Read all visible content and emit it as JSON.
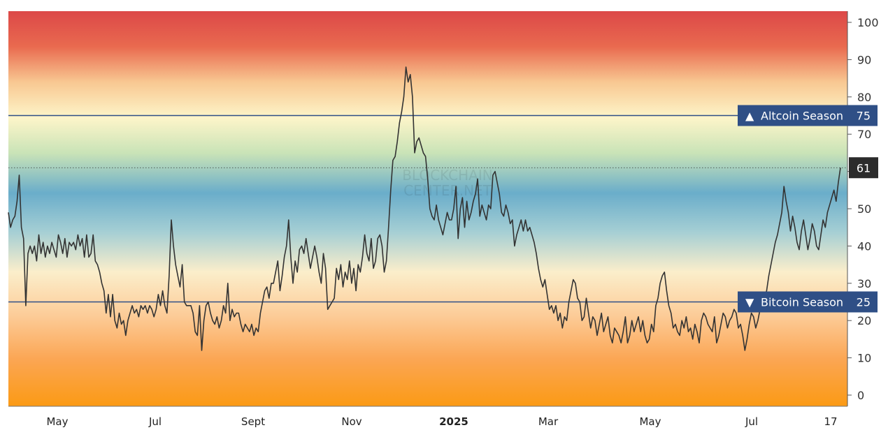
{
  "chart_data": {
    "type": "line",
    "watermark_line1": "BLOCKCHAIN",
    "watermark_line2": "CENTER.NET",
    "ylim": [
      -3,
      103
    ],
    "yticks": [
      0,
      10,
      20,
      30,
      40,
      50,
      60,
      70,
      80,
      90,
      100
    ],
    "xlabels": [
      {
        "label": "May",
        "bold": false
      },
      {
        "label": "Jul",
        "bold": false
      },
      {
        "label": "Sept",
        "bold": false
      },
      {
        "label": "Nov",
        "bold": false
      },
      {
        "label": "2025",
        "bold": true
      },
      {
        "label": "Mar",
        "bold": false
      },
      {
        "label": "May",
        "bold": false
      },
      {
        "label": "Jul",
        "bold": false
      },
      {
        "label": "17",
        "bold": false
      }
    ],
    "levels": [
      {
        "name": "Altcoin Season",
        "value": 75,
        "arrow": "▲"
      },
      {
        "name": "Bitcoin Season",
        "value": 25,
        "arrow": "▼"
      }
    ],
    "current_value": 61,
    "colors": {
      "line": "#333333",
      "level_line": "#2f4f86",
      "badge": "#2f4f86",
      "current_badge": "#2b2b2b"
    },
    "series": [
      {
        "values": [
          49,
          45,
          47,
          48,
          52,
          59,
          45,
          42,
          24,
          38,
          40,
          38,
          40,
          36,
          43,
          38,
          41,
          37,
          40,
          38,
          41,
          39,
          37,
          43,
          41,
          38,
          42,
          37,
          41,
          40,
          41,
          39,
          43,
          40,
          42,
          37,
          43,
          37,
          38,
          43,
          36,
          35,
          33,
          30,
          28,
          22,
          27,
          21,
          27,
          20,
          18,
          22,
          19,
          20,
          16,
          20,
          22,
          24,
          22,
          23,
          21,
          24,
          23,
          24,
          22,
          24,
          23,
          21,
          23,
          27,
          24,
          28,
          24,
          22,
          32,
          47,
          40,
          35,
          32,
          29,
          35,
          25,
          24,
          24,
          24,
          22,
          17,
          16,
          24,
          12,
          20,
          24,
          25,
          22,
          20,
          19,
          21,
          18,
          20,
          24,
          22,
          30,
          20,
          23,
          21,
          22,
          22,
          19,
          17,
          19,
          18,
          17,
          19,
          16,
          18,
          17,
          22,
          25,
          28,
          29,
          26,
          30,
          30,
          33,
          36,
          28,
          32,
          37,
          40,
          47,
          37,
          30,
          36,
          33,
          39,
          40,
          38,
          42,
          38,
          34,
          37,
          40,
          37,
          33,
          30,
          38,
          34,
          23,
          24,
          25,
          26,
          34,
          31,
          35,
          29,
          33,
          31,
          36,
          30,
          34,
          28,
          35,
          33,
          37,
          43,
          38,
          36,
          42,
          34,
          36,
          42,
          43,
          40,
          33,
          36,
          45,
          55,
          63,
          64,
          68,
          73,
          76,
          80,
          88,
          84,
          86,
          80,
          65,
          68,
          69,
          67,
          65,
          64,
          58,
          50,
          48,
          47,
          51,
          47,
          45,
          43,
          46,
          49,
          47,
          47,
          50,
          56,
          42,
          50,
          53,
          45,
          52,
          47,
          49,
          52,
          54,
          58,
          48,
          51,
          49,
          47,
          51,
          50,
          59,
          60,
          57,
          54,
          49,
          48,
          51,
          49,
          46,
          47,
          40,
          43,
          45,
          47,
          44,
          47,
          44,
          45,
          43,
          41,
          38,
          34,
          31,
          29,
          31,
          27,
          23,
          24,
          22,
          24,
          20,
          22,
          18,
          21,
          20,
          25,
          28,
          31,
          30,
          26,
          25,
          20,
          21,
          26,
          22,
          18,
          21,
          20,
          16,
          19,
          22,
          17,
          19,
          21,
          16,
          14,
          18,
          17,
          16,
          14,
          17,
          21,
          14,
          16,
          20,
          17,
          19,
          21,
          17,
          20,
          16,
          14,
          15,
          19,
          17,
          24,
          26,
          30,
          32,
          33,
          28,
          24,
          22,
          18,
          19,
          17,
          16,
          20,
          18,
          21,
          17,
          18,
          15,
          19,
          17,
          14,
          20,
          22,
          21,
          19,
          18,
          17,
          21,
          14,
          16,
          19,
          22,
          21,
          18,
          20,
          21,
          23,
          22,
          18,
          19,
          16,
          12,
          15,
          19,
          22,
          21,
          18,
          20,
          23,
          24,
          26,
          28,
          32,
          35,
          38,
          41,
          43,
          46,
          49,
          56,
          52,
          49,
          44,
          48,
          45,
          41,
          39,
          44,
          47,
          43,
          39,
          42,
          46,
          44,
          40,
          39,
          43,
          47,
          45,
          49,
          51,
          53,
          55,
          52,
          57,
          61
        ]
      }
    ]
  }
}
